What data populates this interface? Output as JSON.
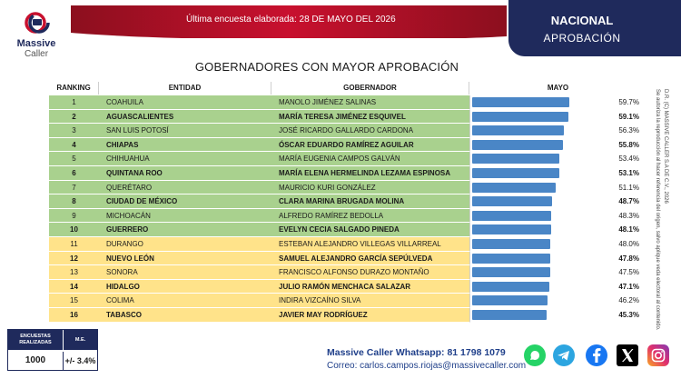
{
  "brand": {
    "name_line1": "Massive",
    "name_line2": "Caller"
  },
  "banner": {
    "text": "Última encuesta elaborada: 28 DE MAYO DEL 2026"
  },
  "scope": {
    "title": "NACIONAL",
    "subtitle": "APROBACIÓN"
  },
  "table": {
    "headers": {
      "ranking": "RANKING",
      "entidad": "ENTIDAD",
      "gobernador": "GOBERNADOR",
      "mayo": "MAYO"
    }
  },
  "chart_data": {
    "type": "bar",
    "title": "GOBERNADORES CON MAYOR APROBACIÓN",
    "series": [
      {
        "name": "MAYO",
        "values": [
          59.7,
          59.1,
          56.3,
          55.8,
          53.4,
          53.1,
          51.1,
          48.7,
          48.3,
          48.1,
          48.0,
          47.8,
          47.5,
          47.1,
          46.2,
          45.3
        ]
      }
    ],
    "rows": [
      {
        "rank": "1",
        "entidad": "COAHUILA",
        "gobernador": "MANOLO JIMÉNEZ SALINAS",
        "value": 59.7,
        "label": "59.7%",
        "bold": false,
        "group": "green"
      },
      {
        "rank": "2",
        "entidad": "AGUASCALIENTES",
        "gobernador": "MARÍA TERESA JIMÉNEZ ESQUIVEL",
        "value": 59.1,
        "label": "59.1%",
        "bold": true,
        "group": "green"
      },
      {
        "rank": "3",
        "entidad": "SAN LUIS POTOSÍ",
        "gobernador": "JOSÉ RICARDO GALLARDO CARDONA",
        "value": 56.3,
        "label": "56.3%",
        "bold": false,
        "group": "green"
      },
      {
        "rank": "4",
        "entidad": "CHIAPAS",
        "gobernador": "ÓSCAR EDUARDO RAMÍREZ AGUILAR",
        "value": 55.8,
        "label": "55.8%",
        "bold": true,
        "group": "green"
      },
      {
        "rank": "5",
        "entidad": "CHIHUAHUA",
        "gobernador": "MARÍA EUGENIA CAMPOS GALVÁN",
        "value": 53.4,
        "label": "53.4%",
        "bold": false,
        "group": "green"
      },
      {
        "rank": "6",
        "entidad": "QUINTANA ROO",
        "gobernador": "MARÍA ELENA HERMELINDA LEZAMA ESPINOSA",
        "value": 53.1,
        "label": "53.1%",
        "bold": true,
        "group": "green"
      },
      {
        "rank": "7",
        "entidad": "QUERÉTARO",
        "gobernador": "MAURICIO KURI GONZÁLEZ",
        "value": 51.1,
        "label": "51.1%",
        "bold": false,
        "group": "green"
      },
      {
        "rank": "8",
        "entidad": "CIUDAD DE MÉXICO",
        "gobernador": "CLARA MARINA BRUGADA MOLINA",
        "value": 48.7,
        "label": "48.7%",
        "bold": true,
        "group": "green"
      },
      {
        "rank": "9",
        "entidad": "MICHOACÁN",
        "gobernador": "ALFREDO RAMÍREZ BEDOLLA",
        "value": 48.3,
        "label": "48.3%",
        "bold": false,
        "group": "green"
      },
      {
        "rank": "10",
        "entidad": "GUERRERO",
        "gobernador": "EVELYN CECIA SALGADO PINEDA",
        "value": 48.1,
        "label": "48.1%",
        "bold": true,
        "group": "green"
      },
      {
        "rank": "11",
        "entidad": "DURANGO",
        "gobernador": "ESTEBAN ALEJANDRO VILLEGAS VILLARREAL",
        "value": 48.0,
        "label": "48.0%",
        "bold": false,
        "group": "yellow"
      },
      {
        "rank": "12",
        "entidad": "NUEVO LEÓN",
        "gobernador": "SAMUEL ALEJANDRO GARCÍA SEPÚLVEDA",
        "value": 47.8,
        "label": "47.8%",
        "bold": true,
        "group": "yellow"
      },
      {
        "rank": "13",
        "entidad": "SONORA",
        "gobernador": "FRANCISCO ALFONSO DURAZO MONTAÑO",
        "value": 47.5,
        "label": "47.5%",
        "bold": false,
        "group": "yellow"
      },
      {
        "rank": "14",
        "entidad": "HIDALGO",
        "gobernador": "JULIO RAMÓN MENCHACA SALAZAR",
        "value": 47.1,
        "label": "47.1%",
        "bold": true,
        "group": "yellow"
      },
      {
        "rank": "15",
        "entidad": "COLIMA",
        "gobernador": "INDIRA VIZCAÍNO SILVA",
        "value": 46.2,
        "label": "46.2%",
        "bold": false,
        "group": "yellow"
      },
      {
        "rank": "16",
        "entidad": "TABASCO",
        "gobernador": "JAVIER MAY RODRÍGUEZ",
        "value": 45.3,
        "label": "45.3%",
        "bold": true,
        "group": "yellow"
      }
    ],
    "xlim": [
      0,
      70
    ],
    "colors": {
      "bar": "#4a86c6",
      "green": "#a9d18e",
      "yellow": "#ffe38a"
    }
  },
  "stats": {
    "label_encuestas_1": "ENCUESTAS",
    "label_encuestas_2": "REALIZADAS",
    "label_me": "M.E.",
    "encuestas": "1000",
    "me": "+/- 3.4%"
  },
  "contact": {
    "whatsapp": "Massive Caller Whatsapp: 81 1798 1079",
    "correo": "Correo: carlos.campos.riojas@massivecaller.com"
  },
  "legal": {
    "line1": "D.R. (C) MASSIVE CALLER S.A DE C.V., 2026",
    "line2": "Se autoriza la reproducción al hacer referencia del origen, salvo aplique veda electoral al contenido."
  },
  "social": [
    "whatsapp-icon",
    "telegram-icon",
    "facebook-icon",
    "x-icon",
    "instagram-icon"
  ]
}
